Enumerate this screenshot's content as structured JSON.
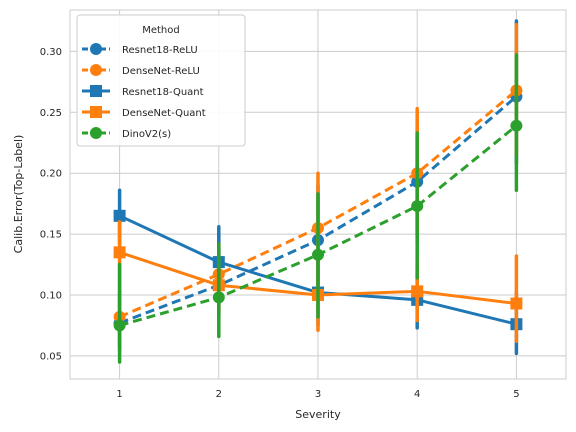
{
  "chart_data": {
    "type": "line",
    "xlabel": "Severity",
    "ylabel": "Calib.Error(Top-Label)",
    "x": [
      1,
      2,
      3,
      4,
      5
    ],
    "xlim": [
      0.5,
      5.5
    ],
    "ylim": [
      0.031,
      0.334
    ],
    "yticks": [
      0.05,
      0.1,
      0.15,
      0.2,
      0.25,
      0.3
    ],
    "ytick_labels": [
      "0.05",
      "0.10",
      "0.15",
      "0.20",
      "0.25",
      "0.30"
    ],
    "xtick_labels": [
      "1",
      "2",
      "3",
      "4",
      "5"
    ],
    "grid": true,
    "legend": {
      "title": "Method",
      "placement": "top-left"
    },
    "series": [
      {
        "name": "Resnet18-ReLU",
        "color": "#1f77b4",
        "linestyle": "dashed",
        "marker": "circle",
        "values": [
          0.077,
          0.108,
          0.145,
          0.193,
          0.263
        ],
        "ci_low": [
          0.055,
          0.082,
          0.102,
          0.143,
          0.208
        ],
        "ci_high": [
          0.102,
          0.138,
          0.19,
          0.242,
          0.325
        ]
      },
      {
        "name": "DenseNet-ReLU",
        "color": "#ff7f0e",
        "linestyle": "dashed",
        "marker": "circle",
        "values": [
          0.082,
          0.117,
          0.155,
          0.2,
          0.268
        ],
        "ci_low": [
          0.06,
          0.088,
          0.112,
          0.15,
          0.215
        ],
        "ci_high": [
          0.11,
          0.148,
          0.2,
          0.253,
          0.322
        ]
      },
      {
        "name": "Resnet18-Quant",
        "color": "#1f77b4",
        "linestyle": "solid",
        "marker": "square",
        "values": [
          0.165,
          0.127,
          0.102,
          0.096,
          0.076
        ],
        "ci_low": [
          0.142,
          0.1,
          0.075,
          0.073,
          0.052
        ],
        "ci_high": [
          0.186,
          0.156,
          0.13,
          0.12,
          0.102
        ]
      },
      {
        "name": "DenseNet-Quant",
        "color": "#ff7f0e",
        "linestyle": "solid",
        "marker": "square",
        "values": [
          0.135,
          0.108,
          0.1,
          0.103,
          0.093
        ],
        "ci_low": [
          0.11,
          0.084,
          0.071,
          0.079,
          0.062
        ],
        "ci_high": [
          0.16,
          0.132,
          0.128,
          0.127,
          0.132
        ]
      },
      {
        "name": "DinoV2(s)",
        "color": "#2ca02c",
        "linestyle": "dashed",
        "marker": "circle",
        "values": [
          0.075,
          0.098,
          0.133,
          0.173,
          0.239
        ],
        "ci_low": [
          0.045,
          0.066,
          0.082,
          0.114,
          0.186
        ],
        "ci_high": [
          0.125,
          0.142,
          0.183,
          0.233,
          0.297
        ]
      }
    ]
  }
}
